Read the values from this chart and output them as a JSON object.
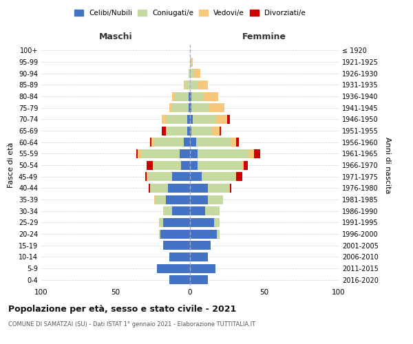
{
  "age_groups": [
    "0-4",
    "5-9",
    "10-14",
    "15-19",
    "20-24",
    "25-29",
    "30-34",
    "35-39",
    "40-44",
    "45-49",
    "50-54",
    "55-59",
    "60-64",
    "65-69",
    "70-74",
    "75-79",
    "80-84",
    "85-89",
    "90-94",
    "95-99",
    "100+"
  ],
  "birth_years": [
    "2016-2020",
    "2011-2015",
    "2006-2010",
    "2001-2005",
    "1996-2000",
    "1991-1995",
    "1986-1990",
    "1981-1985",
    "1976-1980",
    "1971-1975",
    "1966-1970",
    "1961-1965",
    "1956-1960",
    "1951-1955",
    "1946-1950",
    "1941-1945",
    "1936-1940",
    "1931-1935",
    "1926-1930",
    "1921-1925",
    "≤ 1920"
  ],
  "males": {
    "celibi": [
      14,
      22,
      14,
      18,
      20,
      18,
      12,
      16,
      15,
      12,
      6,
      7,
      4,
      2,
      2,
      1,
      1,
      0,
      0,
      0,
      0
    ],
    "coniugati": [
      0,
      0,
      0,
      0,
      1,
      3,
      6,
      7,
      12,
      16,
      18,
      26,
      20,
      14,
      14,
      11,
      9,
      3,
      1,
      0,
      0
    ],
    "vedovi": [
      0,
      0,
      0,
      0,
      0,
      0,
      0,
      1,
      0,
      1,
      1,
      2,
      2,
      0,
      3,
      2,
      2,
      1,
      0,
      0,
      0
    ],
    "divorziati": [
      0,
      0,
      0,
      0,
      0,
      0,
      0,
      0,
      1,
      1,
      4,
      1,
      1,
      3,
      0,
      0,
      0,
      0,
      0,
      0,
      0
    ]
  },
  "females": {
    "nubili": [
      12,
      17,
      12,
      14,
      18,
      16,
      10,
      12,
      12,
      8,
      5,
      5,
      4,
      1,
      2,
      1,
      1,
      0,
      0,
      0,
      0
    ],
    "coniugate": [
      0,
      0,
      0,
      0,
      2,
      4,
      10,
      10,
      15,
      22,
      30,
      35,
      24,
      14,
      15,
      12,
      8,
      5,
      3,
      1,
      0
    ],
    "vedove": [
      0,
      0,
      0,
      0,
      0,
      0,
      0,
      0,
      0,
      1,
      1,
      3,
      3,
      5,
      8,
      10,
      10,
      7,
      4,
      1,
      0
    ],
    "divorziate": [
      0,
      0,
      0,
      0,
      0,
      0,
      0,
      0,
      1,
      4,
      3,
      4,
      2,
      1,
      2,
      0,
      0,
      0,
      0,
      0,
      0
    ]
  },
  "colors": {
    "celibi_nubili": "#4472c4",
    "coniugati": "#c5d9a0",
    "vedovi": "#f5c87c",
    "divorziati": "#cc0000"
  },
  "xlim": 100,
  "title": "Popolazione per età, sesso e stato civile - 2021",
  "subtitle": "COMUNE DI SAMATZAI (SU) - Dati ISTAT 1° gennaio 2021 - Elaborazione TUTTITALIA.IT",
  "xlabel_left": "Maschi",
  "xlabel_right": "Femmine",
  "ylabel_left": "Fasce di età",
  "ylabel_right": "Anni di nascita",
  "legend_labels": [
    "Celibi/Nubili",
    "Coniugati/e",
    "Vedovi/e",
    "Divorziati/e"
  ],
  "background_color": "#ffffff",
  "grid_color": "#cccccc"
}
